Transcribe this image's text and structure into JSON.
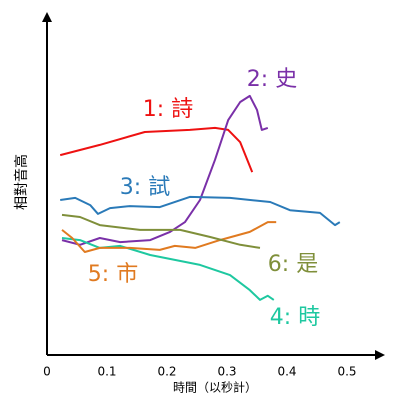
{
  "chart_data": {
    "type": "line",
    "x_label": "時間（以秒計）",
    "y_label": "相對音高",
    "xlim": [
      0,
      0.56
    ],
    "ylim": [
      0,
      100
    ],
    "xticks": [
      0,
      0.1,
      0.2,
      0.3,
      0.4,
      0.5
    ],
    "series": [
      {
        "name": "1: 詩",
        "color": "#ee1111",
        "x": [
          0.022,
          0.088,
          0.163,
          0.238,
          0.28,
          0.302,
          0.322,
          0.342
        ],
        "values": [
          58.8,
          61.8,
          65.6,
          66.2,
          66.8,
          66.2,
          62.6,
          53.8
        ]
      },
      {
        "name": "2: 史",
        "color": "#7a30a8",
        "x": [
          0.025,
          0.055,
          0.088,
          0.122,
          0.172,
          0.205,
          0.23,
          0.255,
          0.28,
          0.302,
          0.322,
          0.338,
          0.35,
          0.358,
          0.368
        ],
        "values": [
          33.8,
          32.4,
          34.4,
          33.2,
          33.8,
          36.2,
          39.1,
          45.6,
          57.4,
          69.1,
          74.4,
          76.2,
          72.1,
          66.2,
          66.8
        ]
      },
      {
        "name": "3: 試",
        "color": "#2a7ab8",
        "x": [
          0.022,
          0.047,
          0.072,
          0.085,
          0.105,
          0.138,
          0.188,
          0.238,
          0.305,
          0.372,
          0.405,
          0.455,
          0.48,
          0.488
        ],
        "values": [
          45.6,
          46.2,
          44.1,
          41.5,
          43.2,
          43.8,
          43.5,
          46.5,
          46.2,
          45.0,
          42.6,
          41.8,
          38.2,
          39.1
        ]
      },
      {
        "name": "4: 時",
        "color": "#1ec8a0",
        "x": [
          0.025,
          0.055,
          0.088,
          0.122,
          0.172,
          0.255,
          0.305,
          0.338,
          0.355,
          0.368,
          0.378
        ],
        "values": [
          34.4,
          33.8,
          31.5,
          32.1,
          29.4,
          26.5,
          23.5,
          19.1,
          16.2,
          17.4,
          16.2
        ]
      },
      {
        "name": "5: 市",
        "color": "#e07a20",
        "x": [
          0.025,
          0.042,
          0.063,
          0.088,
          0.138,
          0.188,
          0.213,
          0.247,
          0.288,
          0.338,
          0.368,
          0.382
        ],
        "values": [
          36.8,
          34.4,
          30.3,
          31.5,
          31.5,
          30.9,
          32.1,
          31.5,
          33.8,
          36.2,
          39.1,
          39.1
        ]
      },
      {
        "name": "6: 是",
        "color": "#7f8f3a",
        "x": [
          0.025,
          0.055,
          0.088,
          0.155,
          0.222,
          0.272,
          0.322,
          0.355
        ],
        "values": [
          41.2,
          40.6,
          38.2,
          36.8,
          36.8,
          34.7,
          32.4,
          31.5
        ]
      }
    ]
  }
}
